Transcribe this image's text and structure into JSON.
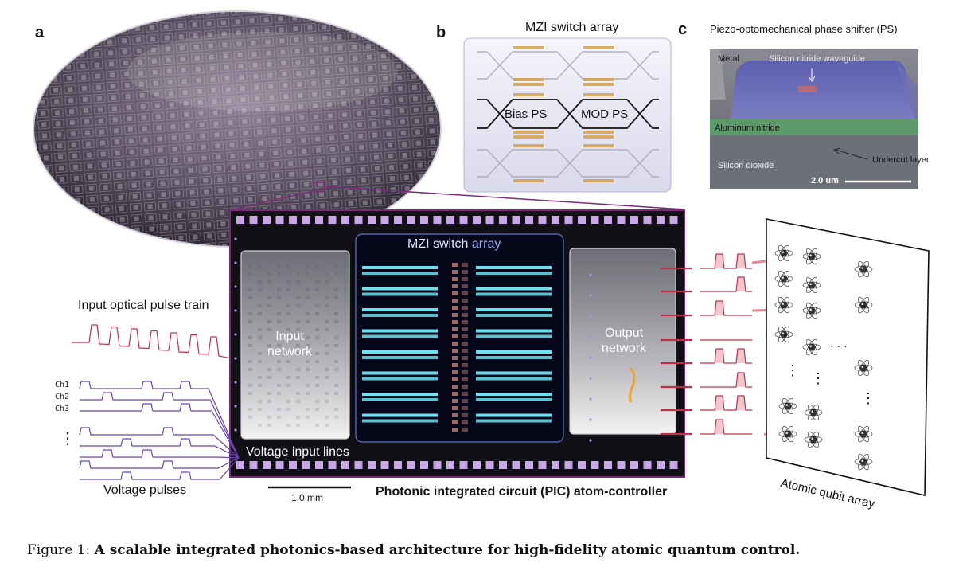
{
  "panels": {
    "a": "a",
    "b": "b",
    "c": "c"
  },
  "mzi": {
    "title": "MZI switch array",
    "bias_label": "Bias PS",
    "mod_label": "MOD PS"
  },
  "sem": {
    "title": "Piezo-optomechanical phase shifter (PS)",
    "metal": "Metal",
    "waveguide": "Silicon nitride waveguide",
    "aluminum": "Aluminum nitride",
    "undercut": "Undercut layer",
    "oxide": "Silicon dioxide",
    "scale": "2.0 um"
  },
  "chip": {
    "mzi_array_part1": "MZI switch ",
    "mzi_array_part2": "array",
    "input_network": "Input\nnetwork",
    "output_network": "Output\nnetwork",
    "voltage_lines": "Voltage input lines",
    "scale": "1.0 mm",
    "title": "Photonic integrated circuit (PIC) atom-controller"
  },
  "left": {
    "optical_label": "Input optical pulse train",
    "channels": [
      "Ch1",
      "Ch2",
      "Ch3"
    ],
    "ellipsis": "⋮",
    "voltage_label": "Voltage pulses"
  },
  "atoms": {
    "label": "Atomic qubit array",
    "ellipsis_h": "· · ·",
    "ellipsis_v": "⋮"
  },
  "caption": {
    "prefix": "Figure 1: ",
    "text": "A scalable integrated photonics-based architecture for high-fidelity atomic quantum control."
  },
  "colors": {
    "chip_border": "#7a2a78",
    "pulse_red": "#c0304a",
    "pulse_violet": "#6b43b5",
    "mzi_cyan": "#6ee0f0",
    "phase_shifter_gold": "#d6a24e"
  }
}
